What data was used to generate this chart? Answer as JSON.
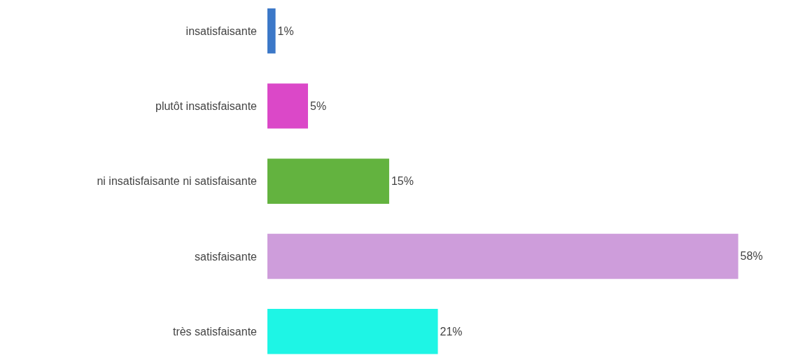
{
  "chart_data": {
    "type": "bar",
    "orientation": "horizontal",
    "categories": [
      "insatisfaisante",
      "plutôt insatisfaisante",
      "ni insatisfaisante ni satisfaisante",
      "satisfaisante",
      "très satisfaisante"
    ],
    "values": [
      1,
      5,
      15,
      58,
      21
    ],
    "value_labels": [
      "1%",
      "5%",
      "15%",
      "58%",
      "21%"
    ],
    "colors": [
      "#3c78c8",
      "#db48c8",
      "#63b33f",
      "#ce9ddb",
      "#1ef5e5"
    ]
  }
}
